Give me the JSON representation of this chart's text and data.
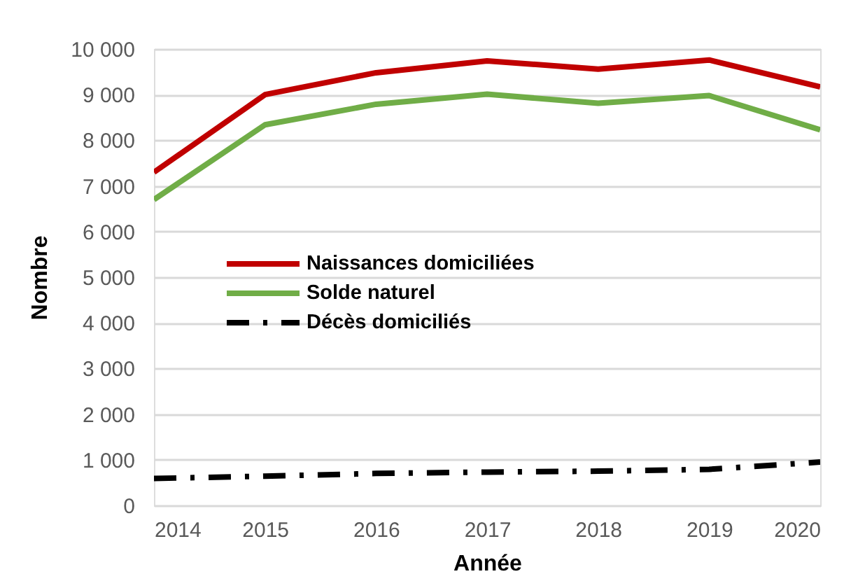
{
  "chart_data": {
    "type": "line",
    "xlabel": "Année",
    "ylabel": "Nombre",
    "x": [
      2014,
      2015,
      2016,
      2017,
      2018,
      2019,
      2020
    ],
    "series": [
      {
        "name": "Naissances domiciliées",
        "color": "#c00000",
        "line_style": "solid",
        "values": [
          7300,
          9000,
          9480,
          9740,
          9560,
          9760,
          9170
        ]
      },
      {
        "name": "Solde naturel",
        "color": "#70ad47",
        "line_style": "solid",
        "values": [
          6700,
          8340,
          8790,
          9010,
          8810,
          8980,
          8230
        ]
      },
      {
        "name": "Décès domiciliés",
        "color": "#000000",
        "line_style": "dashed",
        "values": [
          590,
          640,
          700,
          730,
          750,
          790,
          950
        ]
      }
    ],
    "xlim": [
      2014,
      2020
    ],
    "xticks": [
      2014,
      2015,
      2016,
      2017,
      2018,
      2019,
      2020
    ],
    "ylim": [
      0,
      10000
    ],
    "yticks": [
      0,
      {
        "value": 1000,
        "label": "1 000"
      },
      {
        "value": 2000,
        "label": "2 000"
      },
      {
        "value": 3000,
        "label": "3 000"
      },
      {
        "value": 4000,
        "label": "4 000"
      },
      {
        "value": 5000,
        "label": "5 000"
      },
      {
        "value": 6000,
        "label": "6 000"
      },
      {
        "value": 7000,
        "label": "7 000"
      },
      {
        "value": 8000,
        "label": "8 000"
      },
      {
        "value": 9000,
        "label": "9 000"
      },
      {
        "value": 10000,
        "label": "10 000"
      }
    ],
    "grid": "y",
    "legend": "left"
  }
}
